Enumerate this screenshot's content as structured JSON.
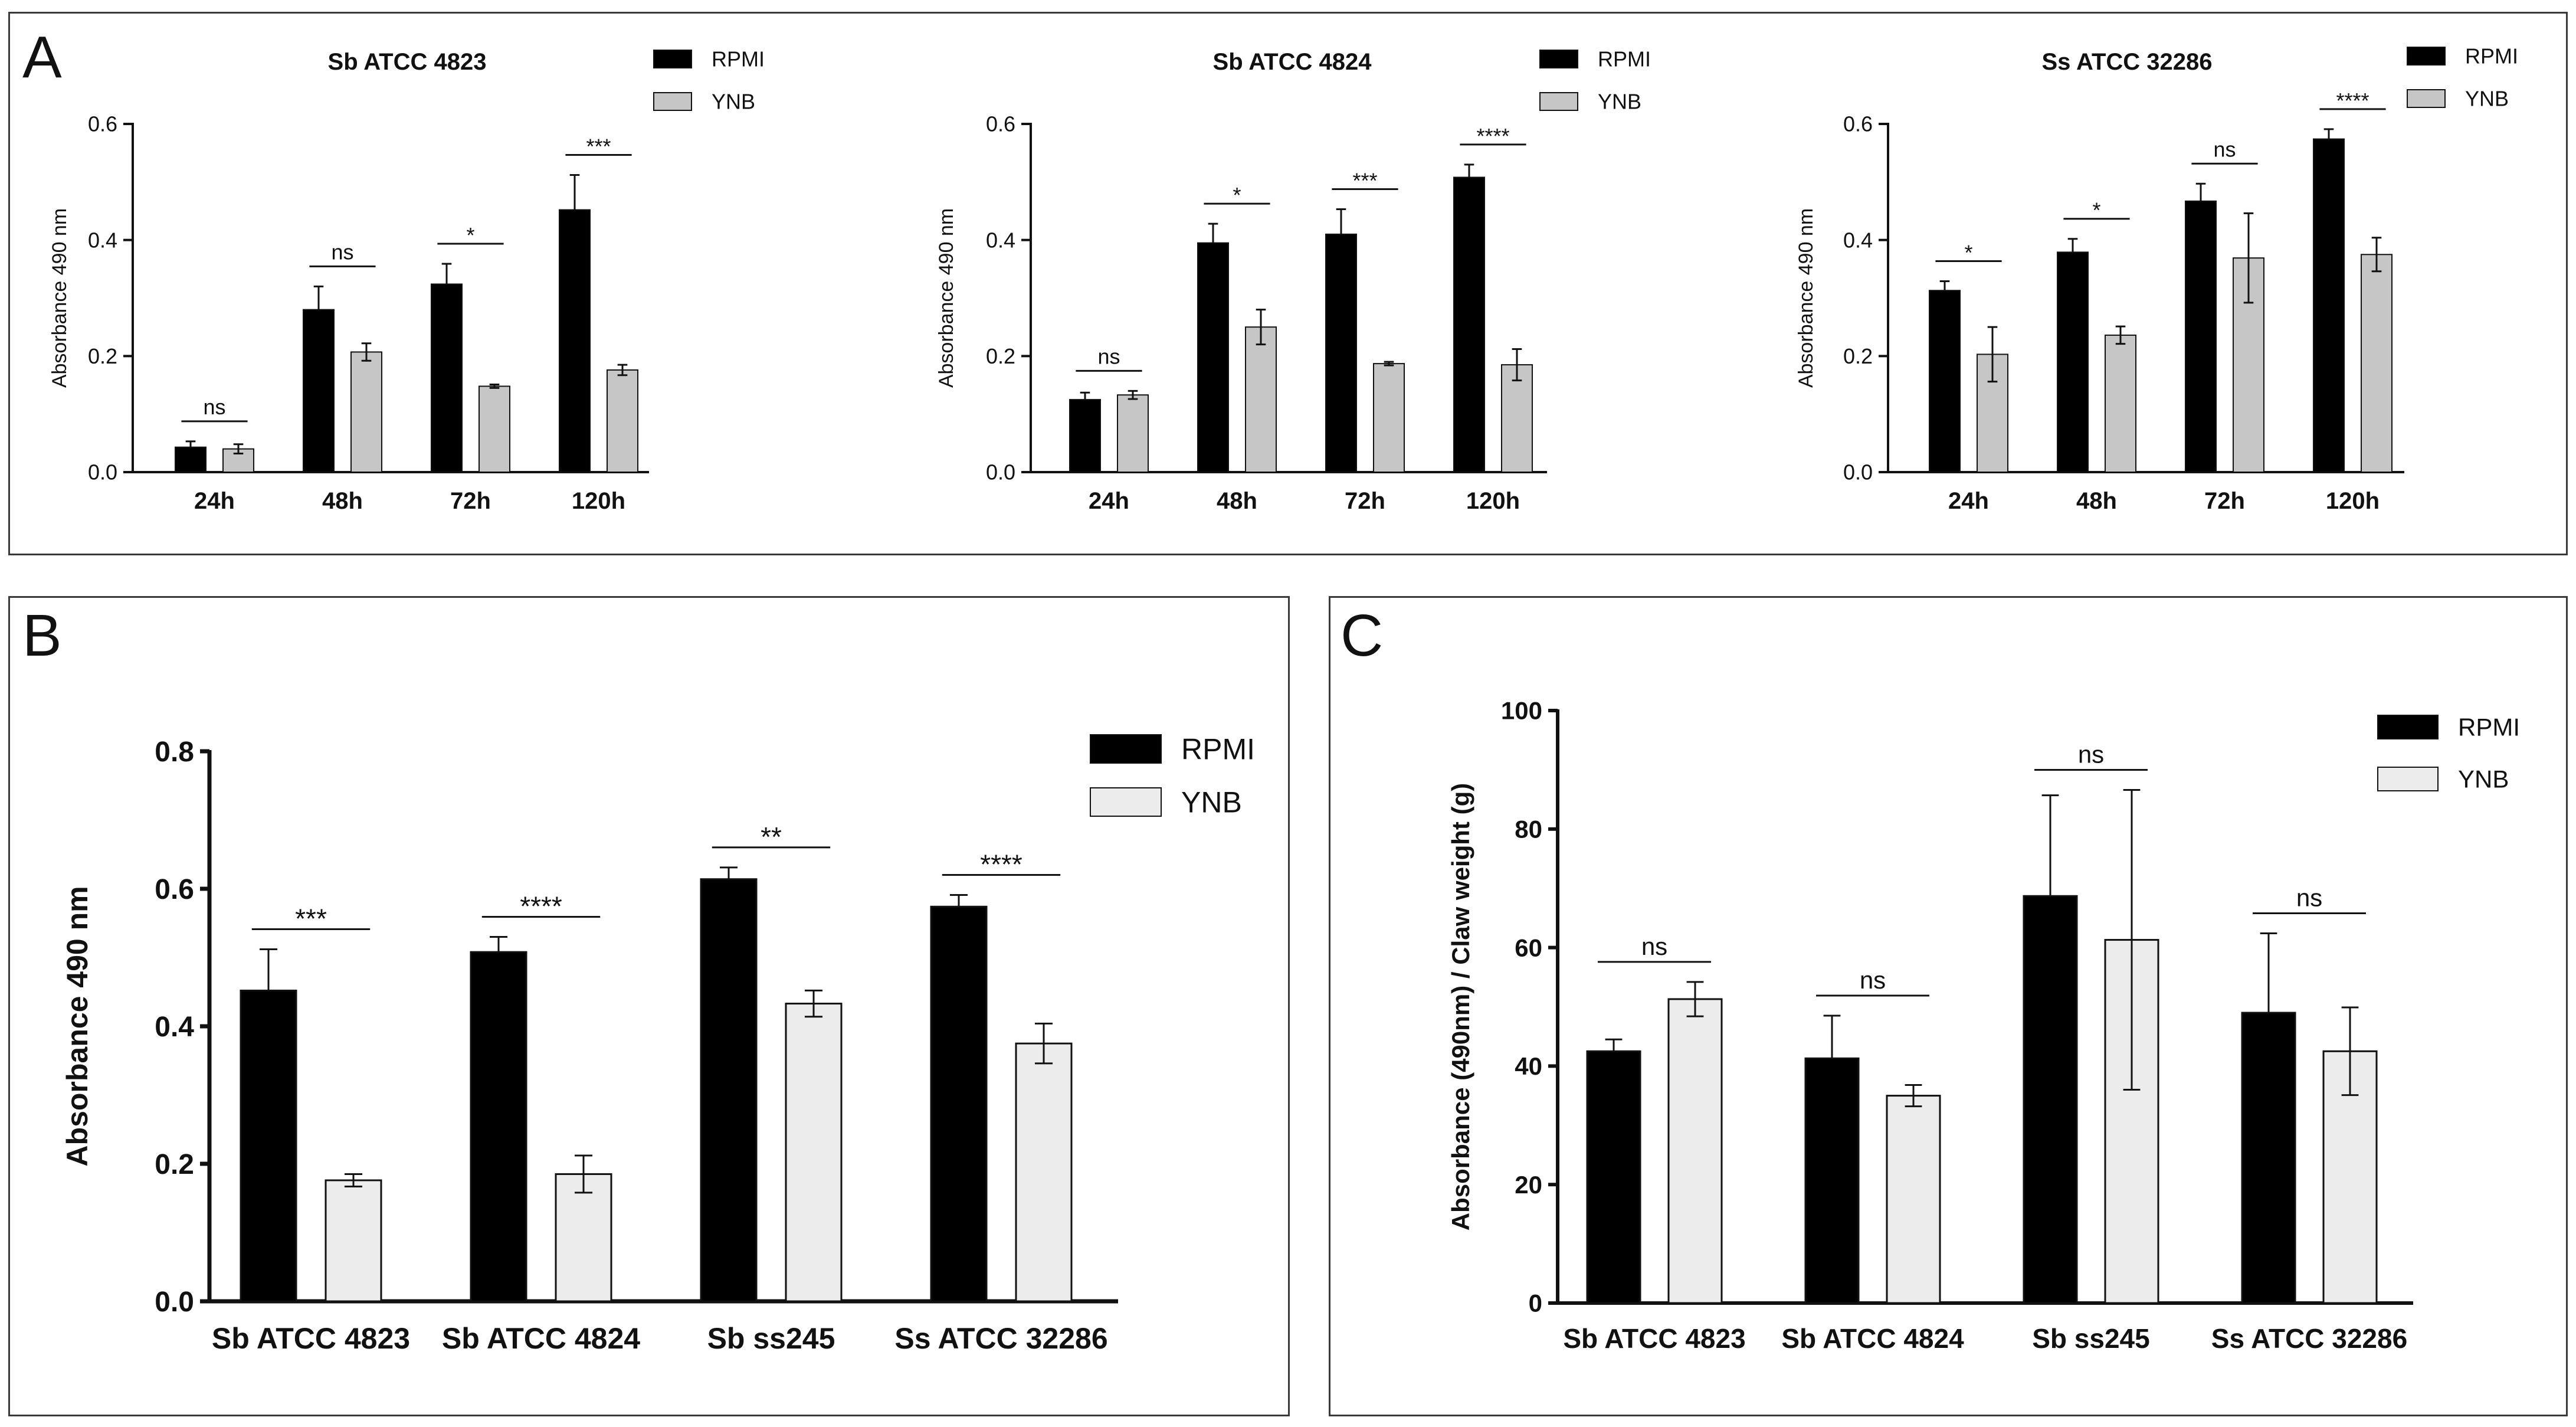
{
  "panels": {
    "A": {
      "letter": "A"
    },
    "B": {
      "letter": "B"
    },
    "C": {
      "letter": "C"
    }
  },
  "colors": {
    "rpmi": "#000000",
    "ynb_a": "#c6c6c6",
    "ynb_bc": "#ececec",
    "stroke": "#111111",
    "border": "#3a3a3a"
  },
  "chart_data": [
    {
      "type": "bar",
      "panel": "A",
      "title": "Sb ATCC 4823",
      "xlabel": "",
      "ylabel": "Absorbance 490 nm",
      "ylim": [
        0,
        0.6
      ],
      "yticks": [
        "0.0",
        "0.2",
        "0.4",
        "0.6"
      ],
      "categories": [
        "24h",
        "48h",
        "72h",
        "120h"
      ],
      "legend": [
        "RPMI",
        "YNB"
      ],
      "series": [
        {
          "name": "RPMI",
          "values": [
            0.043,
            0.28,
            0.324,
            0.452
          ],
          "errors": [
            0.01,
            0.04,
            0.035,
            0.06
          ]
        },
        {
          "name": "YNB",
          "values": [
            0.04,
            0.207,
            0.148,
            0.176
          ],
          "errors": [
            0.008,
            0.015,
            0.003,
            0.009
          ]
        }
      ],
      "significance": [
        "ns",
        "ns",
        "*",
        "***"
      ]
    },
    {
      "type": "bar",
      "panel": "A",
      "title": "Sb ATCC 4824",
      "xlabel": "",
      "ylabel": "Absorbance 490 nm",
      "ylim": [
        0,
        0.6
      ],
      "yticks": [
        "0.0",
        "0.2",
        "0.4",
        "0.6"
      ],
      "categories": [
        "24h",
        "48h",
        "72h",
        "120h"
      ],
      "legend": [
        "RPMI",
        "YNB"
      ],
      "series": [
        {
          "name": "RPMI",
          "values": [
            0.125,
            0.395,
            0.41,
            0.508
          ],
          "errors": [
            0.012,
            0.033,
            0.043,
            0.022
          ]
        },
        {
          "name": "YNB",
          "values": [
            0.133,
            0.25,
            0.187,
            0.185
          ],
          "errors": [
            0.007,
            0.03,
            0.003,
            0.027
          ]
        }
      ],
      "significance": [
        "ns",
        "*",
        "***",
        "****"
      ]
    },
    {
      "type": "bar",
      "panel": "A",
      "title": "Ss ATCC 32286",
      "xlabel": "",
      "ylabel": "Absorbance 490 nm",
      "ylim": [
        0,
        0.6
      ],
      "yticks": [
        "0.0",
        "0.2",
        "0.4",
        "0.6"
      ],
      "categories": [
        "24h",
        "48h",
        "72h",
        "120h"
      ],
      "legend": [
        "RPMI",
        "YNB"
      ],
      "series": [
        {
          "name": "RPMI",
          "values": [
            0.313,
            0.379,
            0.467,
            0.574
          ],
          "errors": [
            0.016,
            0.023,
            0.03,
            0.017
          ]
        },
        {
          "name": "YNB",
          "values": [
            0.203,
            0.236,
            0.369,
            0.375
          ],
          "errors": [
            0.047,
            0.015,
            0.077,
            0.029
          ]
        }
      ],
      "significance": [
        "*",
        "*",
        "ns",
        "****"
      ]
    },
    {
      "type": "bar",
      "panel": "B",
      "title": "",
      "xlabel": "",
      "ylabel": "Absorbance 490 nm",
      "ylim": [
        0,
        0.8
      ],
      "yticks": [
        "0.0",
        "0.2",
        "0.4",
        "0.6",
        "0.8"
      ],
      "categories": [
        "Sb ATCC 4823",
        "Sb ATCC 4824",
        "Sb ss245",
        "Ss ATCC 32286"
      ],
      "legend": [
        "RPMI",
        "YNB"
      ],
      "series": [
        {
          "name": "RPMI",
          "values": [
            0.452,
            0.508,
            0.614,
            0.574
          ],
          "errors": [
            0.06,
            0.022,
            0.017,
            0.017
          ]
        },
        {
          "name": "YNB",
          "values": [
            0.176,
            0.185,
            0.433,
            0.375
          ],
          "errors": [
            0.009,
            0.027,
            0.019,
            0.029
          ]
        }
      ],
      "significance": [
        "***",
        "****",
        "**",
        "****"
      ]
    },
    {
      "type": "bar",
      "panel": "C",
      "title": "",
      "xlabel": "",
      "ylabel": "Absorbance (490nm) / Claw weight (g)",
      "ylim": [
        0,
        100
      ],
      "yticks": [
        "0",
        "20",
        "40",
        "60",
        "80",
        "100"
      ],
      "categories": [
        "Sb ATCC 4823",
        "Sb ATCC 4824",
        "Sb ss245",
        "Ss ATCC 32286"
      ],
      "legend": [
        "RPMI",
        "YNB"
      ],
      "series": [
        {
          "name": "RPMI",
          "values": [
            42.5,
            41.3,
            68.7,
            49.0
          ],
          "errors": [
            2.0,
            7.2,
            17.0,
            13.4
          ]
        },
        {
          "name": "YNB",
          "values": [
            51.3,
            35.0,
            61.3,
            42.5
          ],
          "errors": [
            2.9,
            1.8,
            25.3,
            7.4
          ]
        }
      ],
      "significance": [
        "ns",
        "ns",
        "ns",
        "ns"
      ]
    }
  ]
}
